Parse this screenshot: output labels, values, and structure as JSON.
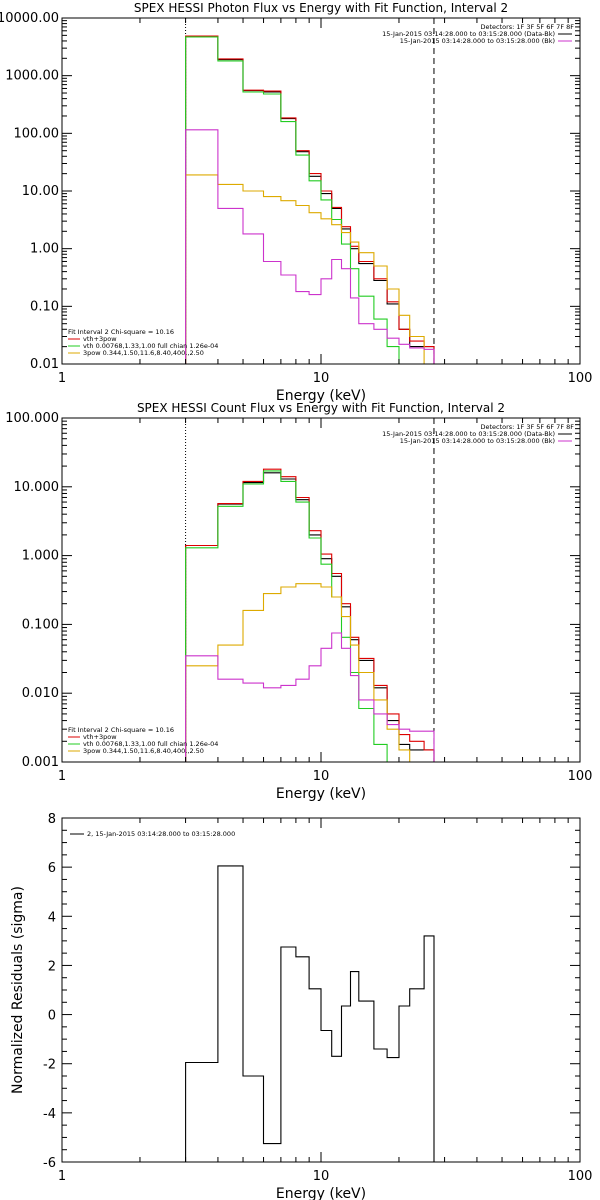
{
  "chart_data": [
    {
      "type": "line",
      "title": "SPEX HESSI Photon Flux vs Energy with Fit Function, Interval 2",
      "xlabel": "Energy (keV)",
      "ylabel": "",
      "xscale": "log",
      "yscale": "log",
      "xlim": [
        1,
        100
      ],
      "ylim": [
        0.01,
        10000
      ],
      "xticks": [
        "1",
        "10",
        "100"
      ],
      "yticks": [
        "0.01",
        "0.10",
        "1.00",
        "10.00",
        "100.00",
        "1000.00",
        "10000.00"
      ],
      "grid": false,
      "vlines": [
        {
          "x": 3.0,
          "style": "dotted"
        },
        {
          "x": 27.3,
          "style": "dashed"
        }
      ],
      "edges": [
        3.0,
        4.0,
        5.0,
        6.0,
        7.0,
        8.0,
        9.0,
        10.0,
        11.0,
        12.0,
        13.0,
        14.0,
        16.0,
        18.0,
        20.0,
        22.0,
        25.0,
        27.3
      ],
      "legend_top": {
        "header": "Detectors: 1F 3F 5F 6F 7F 8F",
        "entries": [
          {
            "label": "15-Jan-2015 03:14:28.000 to 03:15:28.000 (Data-Bk)",
            "color": "#000000"
          },
          {
            "label": "15-Jan-2015 03:14:28.000 to 03:15:28.000 (Bk)",
            "color": "#cc33cc"
          }
        ]
      },
      "legend_bottom": {
        "header": "Fit Interval 2   Chi-square = 10.16",
        "entries": [
          {
            "label": "vth+3pow",
            "color": "#dd0000"
          },
          {
            "label": "vth 0.00768,1.33,1.00  full chian 1.26e-04",
            "color": "#22cc22"
          },
          {
            "label": "3pow 0.344,1.50,11.6,8.40,400.,2.50",
            "color": "#ddaa00"
          }
        ]
      },
      "series": [
        {
          "color": "#000000",
          "values": [
            4800,
            1900,
            550,
            520,
            180,
            48,
            18,
            9,
            5,
            2.2,
            1.0,
            0.55,
            0.28,
            0.11,
            0.04,
            0.02,
            0.02
          ]
        },
        {
          "color": "#dd0000",
          "values": [
            4850,
            1950,
            560,
            540,
            185,
            50,
            20,
            10,
            5.2,
            2.4,
            1.1,
            0.6,
            0.3,
            0.12,
            0.04,
            0.025,
            0.02
          ]
        },
        {
          "color": "#22cc22",
          "values": [
            4700,
            1800,
            520,
            480,
            160,
            42,
            15,
            7,
            3.2,
            1.2,
            0.45,
            0.15,
            0.06,
            0.02,
            0.01,
            0.01,
            0.01
          ]
        },
        {
          "color": "#ddaa00",
          "values": [
            19,
            13,
            10,
            8,
            6.8,
            5.6,
            4.2,
            3.3,
            2.6,
            1.9,
            1.3,
            0.85,
            0.5,
            0.2,
            0.07,
            0.03,
            0.01
          ]
        },
        {
          "color": "#cc33cc",
          "values": [
            115,
            5,
            1.8,
            0.6,
            0.35,
            0.18,
            0.16,
            0.3,
            0.65,
            0.45,
            0.14,
            0.05,
            0.04,
            0.028,
            0.022,
            0.019,
            0.018
          ]
        }
      ]
    },
    {
      "type": "line",
      "title": "SPEX HESSI Count Flux vs Energy with Fit Function, Interval 2",
      "xlabel": "Energy (keV)",
      "ylabel": "",
      "xscale": "log",
      "yscale": "log",
      "xlim": [
        1,
        100
      ],
      "ylim": [
        0.001,
        100
      ],
      "xticks": [
        "1",
        "10",
        "100"
      ],
      "yticks": [
        "0.001",
        "0.010",
        "0.100",
        "1.000",
        "10.000",
        "100.000"
      ],
      "grid": false,
      "vlines": [
        {
          "x": 3.0,
          "style": "dotted"
        },
        {
          "x": 27.3,
          "style": "dashed"
        }
      ],
      "edges": [
        3.0,
        4.0,
        5.0,
        6.0,
        7.0,
        8.0,
        9.0,
        10.0,
        11.0,
        12.0,
        13.0,
        14.0,
        16.0,
        18.0,
        20.0,
        22.0,
        25.0,
        27.3
      ],
      "legend_top": {
        "header": "Detectors: 1F 3F 5F 6F 7F 8F",
        "entries": [
          {
            "label": "15-Jan-2015 03:14:28.000 to 03:15:28.000 (Data-Bk)",
            "color": "#000000"
          },
          {
            "label": "15-Jan-2015 03:14:28.000 to 03:15:28.000 (Bk)",
            "color": "#cc33cc"
          }
        ]
      },
      "legend_bottom": {
        "header": "Fit Interval 2   Chi-square = 10.16",
        "entries": [
          {
            "label": "vth+3pow",
            "color": "#dd0000"
          },
          {
            "label": "vth 0.00768,1.33,1.00  full chian 1.26e-04",
            "color": "#22cc22"
          },
          {
            "label": "3pow 0.344,1.50,11.6,8.40,400.,2.50",
            "color": "#ddaa00"
          }
        ]
      },
      "series": [
        {
          "color": "#000000",
          "values": [
            1.4,
            5.6,
            11.5,
            16,
            13,
            6.5,
            2.0,
            0.9,
            0.5,
            0.18,
            0.06,
            0.03,
            0.012,
            0.004,
            0.0018,
            0.0015,
            0.0015
          ]
        },
        {
          "color": "#dd0000",
          "values": [
            1.4,
            5.7,
            12,
            18,
            14,
            7,
            2.3,
            1.05,
            0.55,
            0.2,
            0.065,
            0.032,
            0.013,
            0.005,
            0.0025,
            0.002,
            0.0015
          ]
        },
        {
          "color": "#22cc22",
          "values": [
            1.3,
            5.2,
            11,
            17,
            12,
            6.0,
            1.8,
            0.75,
            0.25,
            0.065,
            0.02,
            0.006,
            0.0018,
            0.001,
            0.001,
            0.001,
            0.001
          ]
        },
        {
          "color": "#ddaa00",
          "values": [
            0.025,
            0.05,
            0.16,
            0.28,
            0.35,
            0.39,
            0.39,
            0.35,
            0.25,
            0.13,
            0.05,
            0.02,
            0.008,
            0.003,
            0.0015,
            0.001,
            0.001
          ]
        },
        {
          "color": "#cc33cc",
          "values": [
            0.035,
            0.016,
            0.014,
            0.012,
            0.013,
            0.016,
            0.025,
            0.045,
            0.075,
            0.045,
            0.018,
            0.008,
            0.005,
            0.0035,
            0.003,
            0.0028,
            0.0028
          ]
        }
      ]
    },
    {
      "type": "line",
      "title": "",
      "xlabel": "Energy (keV)",
      "ylabel": "Normalized Residuals (sigma)",
      "xscale": "log",
      "yscale": "linear",
      "xlim": [
        1,
        100
      ],
      "ylim": [
        -6,
        8
      ],
      "xticks": [
        "1",
        "10",
        "100"
      ],
      "yticks": [
        "-6",
        "-4",
        "-2",
        "0",
        "2",
        "4",
        "6",
        "8"
      ],
      "grid": false,
      "legend_top": {
        "entries": [
          {
            "label": "2, 15-Jan-2015 03:14:28.000 to 03:15:28.000",
            "color": "#000000"
          }
        ]
      },
      "edges": [
        3.0,
        4.0,
        5.0,
        6.0,
        7.0,
        8.0,
        9.0,
        10.0,
        11.0,
        12.0,
        13.0,
        14.0,
        16.0,
        18.0,
        20.0,
        22.0,
        25.0,
        27.3
      ],
      "series": [
        {
          "color": "#000000",
          "values": [
            -1.95,
            6.05,
            -2.5,
            -5.25,
            2.75,
            2.35,
            1.05,
            -0.65,
            -1.7,
            0.35,
            1.75,
            0.55,
            -1.4,
            -1.75,
            0.35,
            1.05,
            3.2
          ]
        }
      ]
    }
  ]
}
